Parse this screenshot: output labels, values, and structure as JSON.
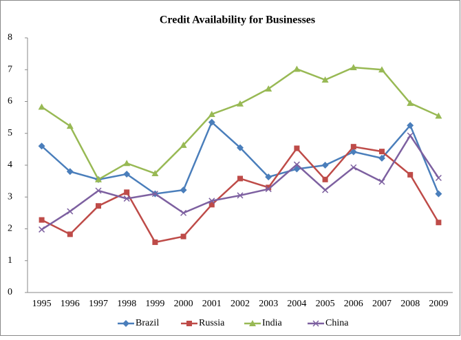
{
  "chart_data": {
    "type": "line",
    "title": "Credit Availability for Businesses",
    "categories": [
      "1995",
      "1996",
      "1997",
      "1998",
      "1999",
      "2000",
      "2001",
      "2002",
      "2003",
      "2004",
      "2005",
      "2006",
      "2007",
      "2008",
      "2009"
    ],
    "series": [
      {
        "name": "Brazil",
        "color": "#4a7ebb",
        "marker": "diamond",
        "values": [
          4.6,
          3.8,
          3.55,
          3.72,
          3.1,
          3.22,
          5.35,
          4.55,
          3.63,
          3.88,
          4.0,
          4.42,
          4.22,
          5.25,
          3.1
        ]
      },
      {
        "name": "Russia",
        "color": "#be4b48",
        "marker": "square",
        "values": [
          2.28,
          1.83,
          2.72,
          3.15,
          1.58,
          1.76,
          2.76,
          3.58,
          3.3,
          4.53,
          3.55,
          4.58,
          4.43,
          3.7,
          2.2
        ]
      },
      {
        "name": "India",
        "color": "#98b954",
        "marker": "triangle",
        "values": [
          5.83,
          5.23,
          3.55,
          4.06,
          3.74,
          4.63,
          5.6,
          5.93,
          6.4,
          7.02,
          6.68,
          7.07,
          7.0,
          5.95,
          5.55
        ]
      },
      {
        "name": "China",
        "color": "#7d60a0",
        "marker": "x",
        "values": [
          1.98,
          2.55,
          3.2,
          2.95,
          3.1,
          2.5,
          2.88,
          3.05,
          3.25,
          4.02,
          3.22,
          3.93,
          3.48,
          4.93,
          3.6
        ]
      }
    ],
    "ylim": [
      0,
      8
    ],
    "yticks": [
      0,
      1,
      2,
      3,
      4,
      5,
      6,
      7,
      8
    ],
    "grid": false,
    "legend": "bottom"
  }
}
